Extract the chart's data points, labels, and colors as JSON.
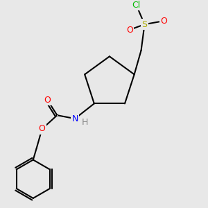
{
  "background_color": "#e8e8e8",
  "bond_color": "#000000",
  "bond_width": 1.5,
  "font_size": 9,
  "atoms": {
    "Cl": {
      "color": "#00bb00",
      "size": 9
    },
    "S": {
      "color": "#aaaa00",
      "size": 9
    },
    "O": {
      "color": "#ff0000",
      "size": 9
    },
    "N": {
      "color": "#0000ff",
      "size": 9
    },
    "C": {
      "color": "#000000",
      "size": 9
    },
    "H": {
      "color": "#888888",
      "size": 9
    }
  }
}
